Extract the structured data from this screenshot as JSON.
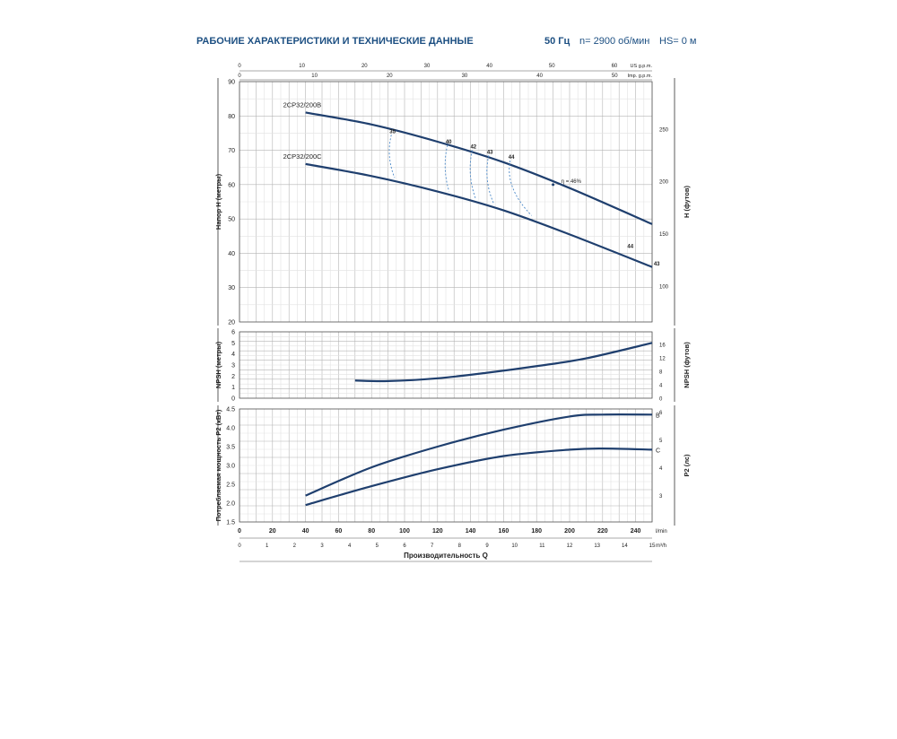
{
  "header": {
    "title": "РАБОЧИЕ ХАРАКТЕРИСТИКИ И ТЕХНИЧЕСКИЕ ДАННЫЕ",
    "frequency": "50 Гц",
    "speed": "n= 2900 об/мин",
    "hs": "HS= 0 м"
  },
  "colors": {
    "curve": "#1f3f6e",
    "grid_major": "#b4b4b4",
    "grid_minor": "#e2e2e2",
    "efficiency": "#4a88c8",
    "title": "#1c4f82"
  },
  "chart_data": [
    {
      "id": "head",
      "type": "line",
      "xlim": [
        0,
        250
      ],
      "ylim": [
        20,
        90
      ],
      "ylabel": "Напор H (метры)",
      "ylabel_right": "H (футов)",
      "yticks": [
        20,
        30,
        40,
        50,
        60,
        70,
        80,
        90
      ],
      "yticks_right": [
        {
          "value": 100,
          "label": "100"
        },
        {
          "value": 150,
          "label": "150"
        },
        {
          "value": 200,
          "label": "200"
        },
        {
          "value": 250,
          "label": "250"
        }
      ],
      "right_scale_factor": 3.2808,
      "top_axes": [
        {
          "label": "US g.p.m.",
          "ticks": [
            {
              "value": 0,
              "label": "0"
            },
            {
              "value": 10,
              "label": "10"
            },
            {
              "value": 20,
              "label": "20"
            },
            {
              "value": 30,
              "label": "30"
            },
            {
              "value": 40,
              "label": "40"
            },
            {
              "value": 50,
              "label": "50"
            },
            {
              "value": 60,
              "label": "60"
            }
          ],
          "per_lmin": 0.26417
        },
        {
          "label": "Imp. g.p.m.",
          "ticks": [
            {
              "value": 0,
              "label": "0"
            },
            {
              "value": 10,
              "label": "10"
            },
            {
              "value": 20,
              "label": "20"
            },
            {
              "value": 30,
              "label": "30"
            },
            {
              "value": 40,
              "label": "40"
            },
            {
              "value": 50,
              "label": "50"
            }
          ],
          "per_lmin": 0.21997
        }
      ],
      "series": [
        {
          "name": "2CP32/200B",
          "x": [
            40,
            80,
            120,
            160,
            200,
            250
          ],
          "y": [
            81,
            77.5,
            72.5,
            66.5,
            59,
            48.5
          ]
        },
        {
          "name": "2CP32/200C",
          "x": [
            40,
            80,
            120,
            160,
            200,
            250
          ],
          "y": [
            66,
            62.5,
            58,
            52.5,
            45.5,
            36
          ]
        }
      ],
      "efficiency": [
        {
          "label": "35",
          "top": [
            92,
            74.5
          ],
          "bottom": [
            94,
            62
          ]
        },
        {
          "label": "40",
          "top": [
            126,
            71.5
          ],
          "bottom": [
            127,
            58
          ]
        },
        {
          "label": "42",
          "top": [
            141,
            70
          ],
          "bottom": [
            143,
            56
          ]
        },
        {
          "label": "43",
          "top": [
            151,
            68.5
          ],
          "bottom": [
            154,
            54.5
          ]
        },
        {
          "label": "44",
          "top": [
            164,
            67
          ],
          "bottom": [
            177,
            51
          ]
        }
      ],
      "efficiency_label": "η = 46%",
      "end_labels": [
        {
          "label": "44",
          "x": 235,
          "y": 41.5
        },
        {
          "label": "43",
          "x": 251,
          "y": 36.5
        }
      ]
    },
    {
      "id": "npsh",
      "type": "line",
      "xlim": [
        0,
        250
      ],
      "ylim": [
        0,
        6
      ],
      "ylabel": "NPSH (метры)",
      "ylabel_right": "NPSH (футов)",
      "yticks": [
        0,
        1,
        2,
        3,
        4,
        5,
        6
      ],
      "yticks_right": [
        {
          "value": 0,
          "label": "0"
        },
        {
          "value": 4,
          "label": "4"
        },
        {
          "value": 8,
          "label": "8"
        },
        {
          "value": 12,
          "label": "12"
        },
        {
          "value": 16,
          "label": "16"
        }
      ],
      "right_scale_factor": 3.2808,
      "series": [
        {
          "name": "",
          "x": [
            70,
            90,
            120,
            150,
            180,
            210,
            250
          ],
          "y": [
            1.6,
            1.55,
            1.8,
            2.3,
            2.9,
            3.6,
            5.0
          ]
        }
      ]
    },
    {
      "id": "power",
      "type": "line",
      "xlim": [
        0,
        250
      ],
      "ylim": [
        1.5,
        4.5
      ],
      "ylabel": "Потребляемая мощность P2 (кВт)",
      "ylabel_right": "P2 (лс)",
      "yticks": [
        1.5,
        2.0,
        2.5,
        3.0,
        3.5,
        4.0,
        4.5
      ],
      "yticks_right": [
        {
          "value": 2,
          "label": "2"
        },
        {
          "value": 3,
          "label": "3"
        },
        {
          "value": 4,
          "label": "4"
        },
        {
          "value": 5,
          "label": "5"
        },
        {
          "value": 6,
          "label": "6"
        }
      ],
      "right_scale_factor": 1.36,
      "series": [
        {
          "name": "B",
          "x": [
            40,
            80,
            120,
            160,
            200,
            220,
            250
          ],
          "y": [
            2.2,
            2.95,
            3.5,
            3.95,
            4.3,
            4.35,
            4.35
          ]
        },
        {
          "name": "C",
          "x": [
            40,
            80,
            120,
            160,
            200,
            220,
            250
          ],
          "y": [
            1.95,
            2.45,
            2.9,
            3.25,
            3.42,
            3.45,
            3.42
          ]
        }
      ]
    }
  ],
  "bottom_axes": {
    "m3h": {
      "unit": "m³/h",
      "ticks": [
        {
          "value": 0,
          "label": "0"
        },
        {
          "value": 20,
          "label": "20"
        },
        {
          "value": 40,
          "label": "40"
        },
        {
          "value": 60,
          "label": "60"
        },
        {
          "value": 80,
          "label": "80"
        },
        {
          "value": 100,
          "label": "100"
        },
        {
          "value": 120,
          "label": "120"
        },
        {
          "value": 140,
          "label": "140"
        },
        {
          "value": 160,
          "label": "160"
        },
        {
          "value": 180,
          "label": "180"
        },
        {
          "value": 200,
          "label": "200"
        },
        {
          "value": 220,
          "label": "220"
        },
        {
          "value": 240,
          "label": "240"
        }
      ]
    },
    "lmin": {
      "unit": "l/min",
      "ticks": [
        {
          "value": 0,
          "label": "0"
        },
        {
          "value": 20,
          "label": "20"
        },
        {
          "value": 40,
          "label": "40"
        },
        {
          "value": 60,
          "label": "60"
        },
        {
          "value": 80,
          "label": "80"
        },
        {
          "value": 100,
          "label": "100"
        },
        {
          "value": 120,
          "label": "120"
        },
        {
          "value": 140,
          "label": "140"
        },
        {
          "value": 160,
          "label": "160"
        },
        {
          "value": 180,
          "label": "180"
        },
        {
          "value": 200,
          "label": "200"
        },
        {
          "value": 220,
          "label": "220"
        },
        {
          "value": 240,
          "label": "240"
        }
      ]
    },
    "m3h_ticks": [
      {
        "value": 0,
        "label": "0"
      },
      {
        "value": 1,
        "label": "1"
      },
      {
        "value": 2,
        "label": "2"
      },
      {
        "value": 3,
        "label": "3"
      },
      {
        "value": 4,
        "label": "4"
      },
      {
        "value": 5,
        "label": "5"
      },
      {
        "value": 6,
        "label": "6"
      },
      {
        "value": 7,
        "label": "7"
      },
      {
        "value": 8,
        "label": "8"
      },
      {
        "value": 9,
        "label": "9"
      },
      {
        "value": 10,
        "label": "10"
      },
      {
        "value": 11,
        "label": "11"
      },
      {
        "value": 12,
        "label": "12"
      },
      {
        "value": 13,
        "label": "13"
      },
      {
        "value": 14,
        "label": "14"
      },
      {
        "value": 15,
        "label": "15"
      }
    ],
    "xlabel": "Производительность Q"
  }
}
